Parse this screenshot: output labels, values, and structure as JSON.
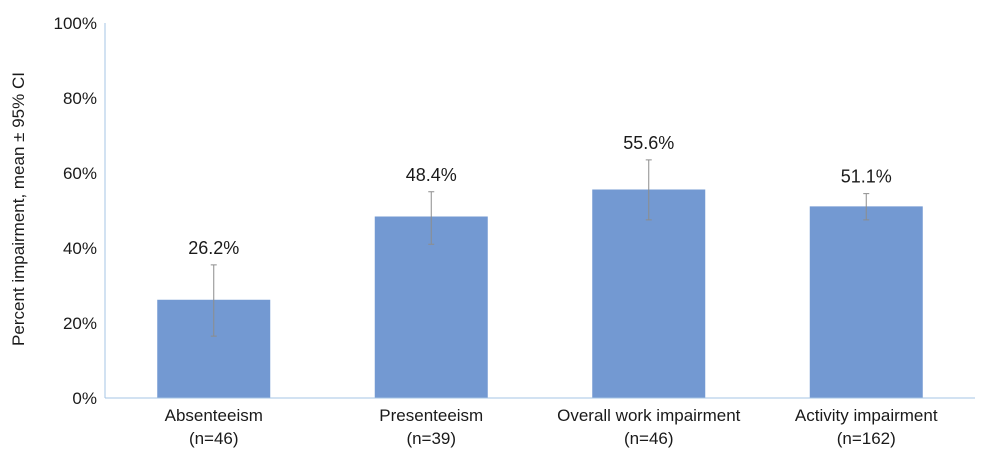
{
  "chart_data": {
    "type": "bar",
    "categories": [
      [
        "Absenteeism",
        "(n=46)"
      ],
      [
        "Presenteeism",
        "(n=39)"
      ],
      [
        "Overall work impairment",
        "(n=46)"
      ],
      [
        "Activity impairment",
        "(n=162)"
      ]
    ],
    "values": [
      26.2,
      48.4,
      55.6,
      51.1
    ],
    "value_labels": [
      "26.2%",
      "48.4%",
      "55.6%",
      "51.1%"
    ],
    "ci_low": [
      16.5,
      41.0,
      47.5,
      47.5
    ],
    "ci_high": [
      35.5,
      55.0,
      63.5,
      54.5
    ],
    "ylabel": "Percent impairment, mean ± 95% CI",
    "xlabel": "",
    "title": "",
    "ylim": [
      0,
      100
    ],
    "yticks": [
      0,
      20,
      40,
      60,
      80,
      100
    ],
    "ytick_labels": [
      "0%",
      "20%",
      "40%",
      "60%",
      "80%",
      "100%"
    ],
    "grid": false,
    "legend": "none",
    "bar_color": "#7399d2",
    "error_bar_color": "#8c8c8c",
    "axis_color": "#a6c4e4"
  }
}
